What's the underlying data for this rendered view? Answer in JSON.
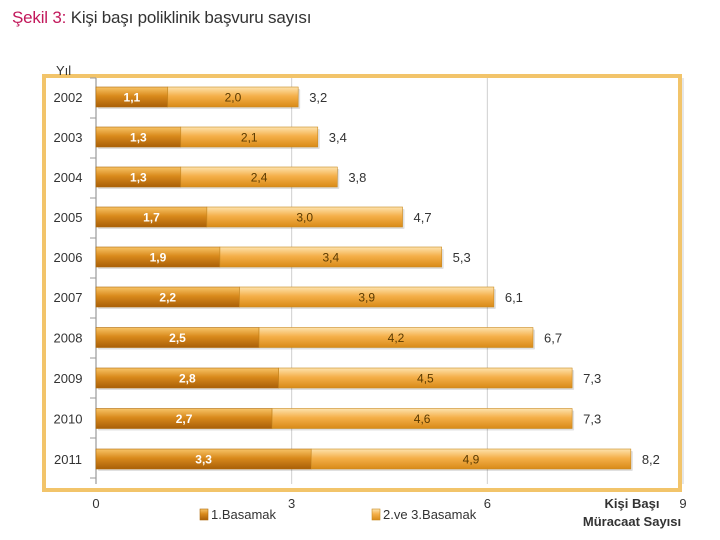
{
  "figure": {
    "title_prefix": "Şekil 3:",
    "title_text": "Kişi başı poliklinik başvuru sayısı"
  },
  "chart_data": {
    "type": "bar",
    "orientation": "horizontal",
    "stacked": true,
    "title": "Kişi başı poliklinik başvuru sayısı",
    "ylabel": "Yıl",
    "xlabel_line1": "Kişi Başı",
    "xlabel_line2": "Müracaat Sayısı",
    "xlim": [
      0,
      9
    ],
    "xticks": [
      "0",
      "3",
      "6",
      "9"
    ],
    "categories": [
      "2002",
      "2003",
      "2004",
      "2005",
      "2006",
      "2007",
      "2008",
      "2009",
      "2010",
      "2011"
    ],
    "series": [
      {
        "name": "1.Basamak",
        "color": "#c97a12",
        "values": [
          1.1,
          1.3,
          1.3,
          1.7,
          1.9,
          2.2,
          2.5,
          2.8,
          2.7,
          3.3
        ],
        "labels": [
          "1,1",
          "1,3",
          "1,3",
          "1,7",
          "1,9",
          "2,2",
          "2,5",
          "2,8",
          "2,7",
          "3,3"
        ]
      },
      {
        "name": "2.ve 3.Basamak",
        "color": "#f3ab3c",
        "values": [
          2.0,
          2.1,
          2.4,
          3.0,
          3.4,
          3.9,
          4.2,
          4.5,
          4.6,
          4.9
        ],
        "labels": [
          "2,0",
          "2,1",
          "2,4",
          "3,0",
          "3,4",
          "3,9",
          "4,2",
          "4,5",
          "4,6",
          "4,9"
        ]
      }
    ],
    "totals": [
      3.2,
      3.4,
      3.8,
      4.7,
      5.3,
      6.1,
      6.7,
      7.3,
      7.3,
      8.2
    ],
    "total_labels": [
      "3,2",
      "3,4",
      "3,8",
      "4,7",
      "5,3",
      "6,1",
      "6,7",
      "7,3",
      "7,3",
      "8,2"
    ],
    "grid": true,
    "legend_position": "bottom"
  }
}
